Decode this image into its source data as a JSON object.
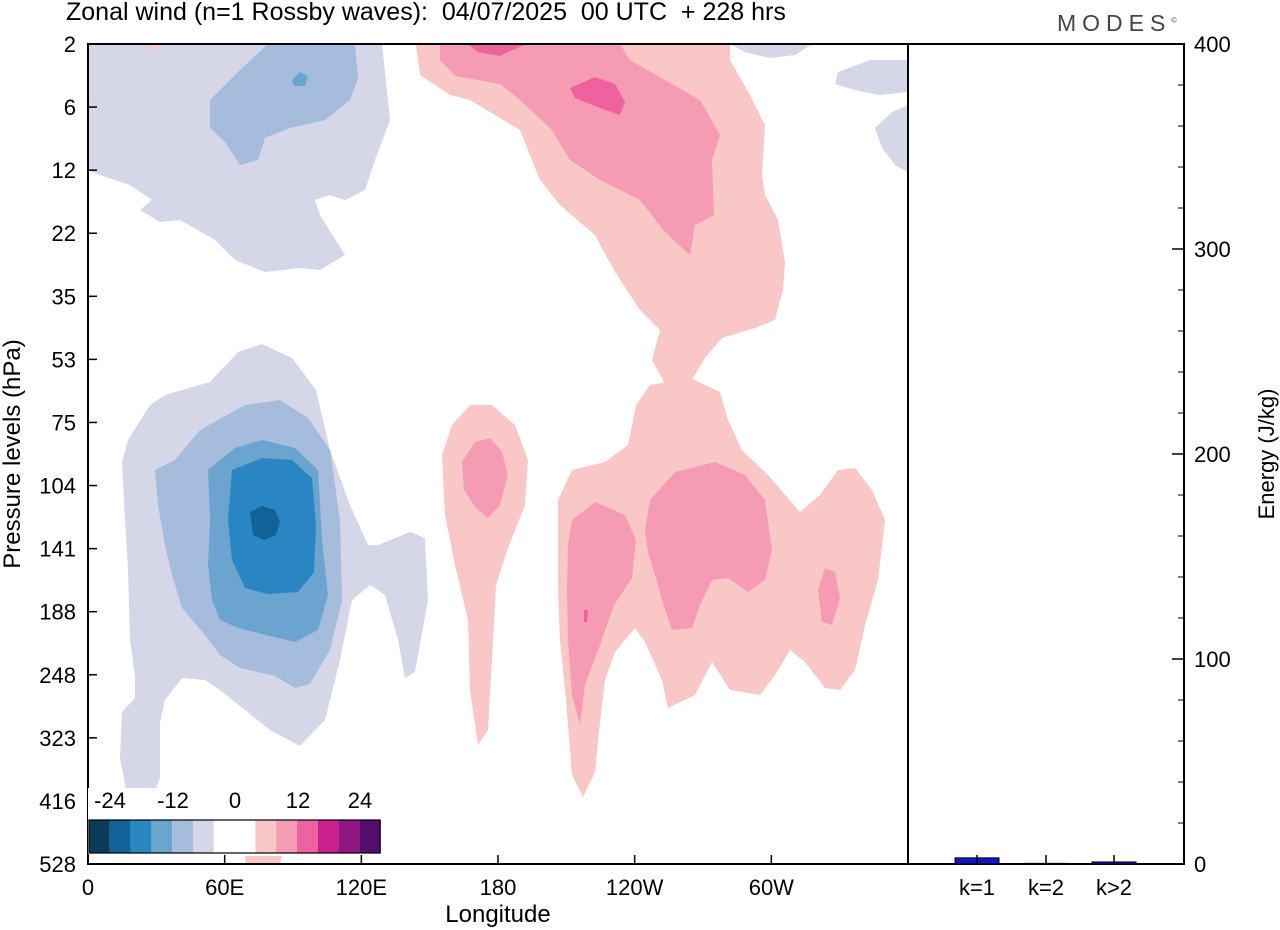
{
  "title": "Zonal wind (n=1 Rossby waves):  04/07/2025  00 UTC  + 228 hrs",
  "brand": "MODES",
  "brand_mark": "©",
  "chart_data": [
    {
      "type": "heatmap",
      "xlabel": "Longitude",
      "ylabel": "Pressure levels (hPa)",
      "x_ticks": [
        "0",
        "60E",
        "120E",
        "180",
        "120W",
        "60W"
      ],
      "x_tick_values": [
        0,
        60,
        120,
        180,
        240,
        300
      ],
      "xlim": [
        0,
        360
      ],
      "y_ticks": [
        "2",
        "6",
        "12",
        "22",
        "35",
        "53",
        "75",
        "104",
        "141",
        "188",
        "248",
        "323",
        "416",
        "528"
      ],
      "colorbar": {
        "tick_labels": [
          "-24",
          "-12",
          "0",
          "12",
          "24"
        ],
        "colors": [
          "#0b3a5a",
          "#12629a",
          "#2a86c2",
          "#6aa4cf",
          "#a6bcdc",
          "#d5d6e8",
          "#ffffff",
          "#ffffff",
          "#f9c7c6",
          "#f69bb4",
          "#ef62a0",
          "#cc1f8e",
          "#8f1580",
          "#540d6e"
        ]
      },
      "regions": [
        {
          "name": "neg-upper-outer",
          "color": "#d5d6e8"
        },
        {
          "name": "neg-upper-inner",
          "color": "#a6bcdc"
        },
        {
          "name": "neg-upper-core",
          "color": "#6aa4cf"
        },
        {
          "name": "neg-right-edge",
          "color": "#d5d6e8"
        },
        {
          "name": "neg-lower-outer",
          "color": "#d5d6e8"
        },
        {
          "name": "neg-lower-l2",
          "color": "#a6bcdc"
        },
        {
          "name": "neg-lower-l3",
          "color": "#6aa4cf"
        },
        {
          "name": "neg-lower-l4",
          "color": "#2a86c2"
        },
        {
          "name": "neg-lower-l5",
          "color": "#12629a"
        },
        {
          "name": "pos-upper-outer",
          "color": "#f9c7c6"
        },
        {
          "name": "pos-upper-inner",
          "color": "#f69bb4"
        },
        {
          "name": "pos-upper-core",
          "color": "#ef62a0"
        },
        {
          "name": "pos-dateline-outer",
          "color": "#f9c7c6"
        },
        {
          "name": "pos-dateline-inner",
          "color": "#f69bb4"
        },
        {
          "name": "pos-lower-outer",
          "color": "#f9c7c6"
        },
        {
          "name": "pos-lower-inner",
          "color": "#f69bb4"
        }
      ]
    },
    {
      "type": "bar",
      "ylabel": "Energy (J/kg)",
      "categories": [
        "k=1",
        "k=2",
        "k>2"
      ],
      "values": [
        3,
        0.3,
        1
      ],
      "ylim": [
        0,
        400
      ],
      "y_ticks": [
        0,
        100,
        200,
        300,
        400
      ],
      "bar_color": "#1414c8"
    }
  ]
}
